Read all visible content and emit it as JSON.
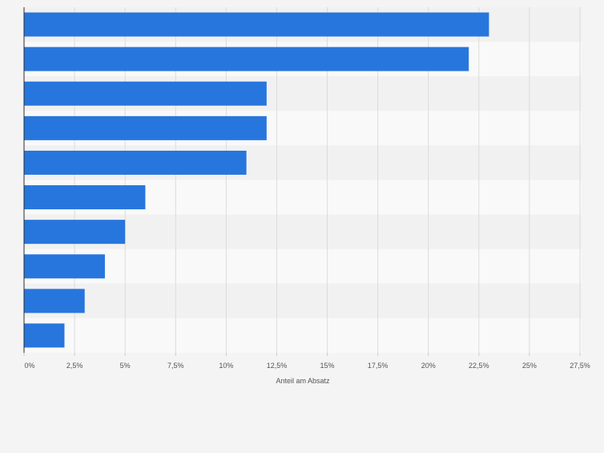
{
  "chart_data": {
    "type": "bar",
    "orientation": "horizontal",
    "categories": [
      "",
      "",
      "",
      "",
      "",
      "",
      "",
      "",
      "",
      ""
    ],
    "values": [
      23,
      22,
      12,
      12,
      11,
      6,
      5,
      4,
      3,
      2
    ],
    "xlabel": "Anteil am Absatz",
    "ylabel": "",
    "xlim": [
      0,
      27.5
    ],
    "ticks": [
      0,
      2.5,
      5,
      7.5,
      10,
      12.5,
      15,
      17.5,
      20,
      22.5,
      25,
      27.5
    ],
    "tick_labels": [
      "0%",
      "2,5%",
      "5%",
      "7,5%",
      "10%",
      "12,5%",
      "15%",
      "17,5%",
      "20%",
      "22,5%",
      "25%",
      "27,5%"
    ],
    "grid": true,
    "legend": "none"
  },
  "colors": {
    "bar": "#2776dd",
    "background": "#f4f4f4",
    "band_light": "#f9f9f9",
    "band_dark": "#f1f1f1",
    "grid": "#dcdcdc",
    "axis": "#2b2b2b",
    "text": "#555555"
  }
}
